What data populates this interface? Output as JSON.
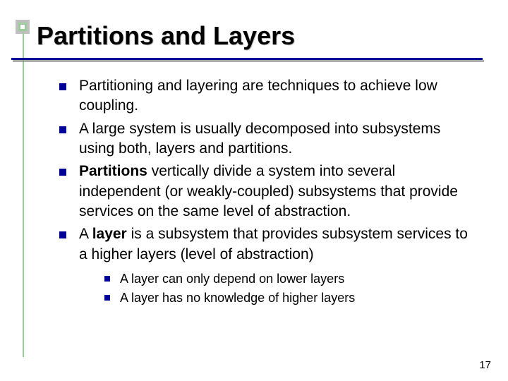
{
  "title": "Partitions and Layers",
  "bullets": {
    "b1": "Partitioning and layering are techniques to achieve low coupling.",
    "b2": "A large system is usually decomposed into subsystems using both, layers and partitions.",
    "b3_pre": "",
    "b3_bold": "Partitions",
    "b3_post": " vertically divide a system into several independent (or weakly-coupled) subsystems that provide services on the same level of abstraction.",
    "b4_pre": "A ",
    "b4_bold": "layer",
    "b4_post": " is a subsystem that provides subsystem services to a higher layers (level of abstraction)",
    "sub1": "A layer can only depend on lower layers",
    "sub2": "A layer has no knowledge of higher layers"
  },
  "page_number": "17",
  "colors": {
    "bullet": "#000099",
    "accent_outer": "#c0c0c0",
    "accent_inner": "#99cc99",
    "text": "#000000",
    "underline": "#000099"
  },
  "fontsize": {
    "title": 36,
    "body": 21,
    "sub": 18,
    "pagenum": 15
  }
}
